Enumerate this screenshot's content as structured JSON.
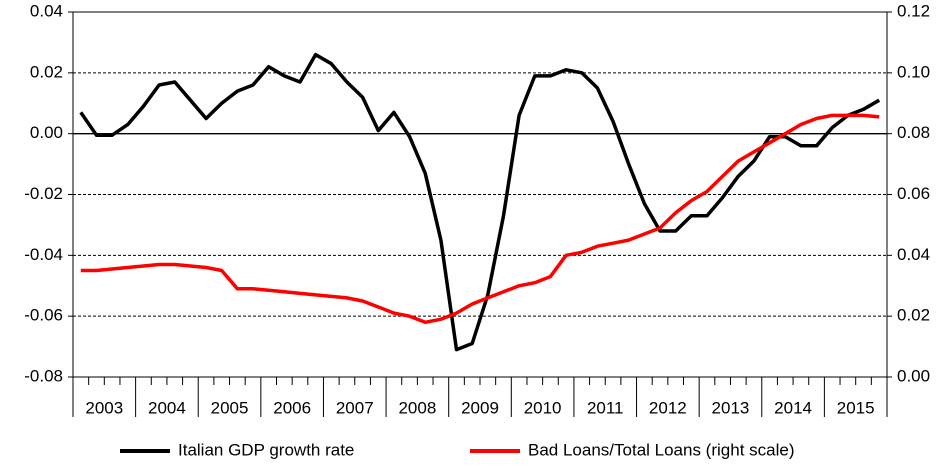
{
  "chart_data": {
    "type": "line",
    "categories": [
      "2003",
      null,
      null,
      null,
      "2004",
      null,
      null,
      null,
      "2005",
      null,
      null,
      null,
      "2006",
      null,
      null,
      null,
      "2007",
      null,
      null,
      null,
      "2008",
      null,
      null,
      null,
      "2009",
      null,
      null,
      null,
      "2010",
      null,
      null,
      null,
      "2011",
      null,
      null,
      null,
      "2012",
      null,
      null,
      null,
      "2013",
      null,
      null,
      null,
      "2014",
      null,
      null,
      null,
      "2015",
      null,
      null,
      null
    ],
    "series": [
      {
        "name": "Italian GDP growth rate",
        "color": "#000000",
        "axis": "y",
        "values": [
          0.007,
          -0.0005,
          -0.0005,
          0.003,
          0.009,
          0.016,
          0.017,
          0.011,
          0.005,
          0.01,
          0.014,
          0.016,
          0.022,
          0.019,
          0.017,
          0.026,
          0.023,
          0.017,
          0.012,
          0.001,
          0.007,
          -0.001,
          -0.013,
          -0.035,
          -0.071,
          -0.069,
          -0.053,
          -0.027,
          0.006,
          0.019,
          0.019,
          0.021,
          0.02,
          0.015,
          0.004,
          -0.01,
          -0.023,
          -0.032,
          -0.032,
          -0.027,
          -0.027,
          -0.021,
          -0.014,
          -0.009,
          -0.001,
          -0.001,
          -0.004,
          -0.004,
          0.002,
          0.006,
          0.008,
          0.011
        ]
      },
      {
        "name": "Bad Loans/Total Loans (right scale)",
        "color": "#ff0000",
        "axis": "y2",
        "values": [
          0.035,
          0.035,
          0.0355,
          0.036,
          0.0365,
          0.037,
          0.037,
          0.0365,
          0.036,
          0.035,
          0.029,
          0.029,
          0.0285,
          0.028,
          0.0275,
          0.027,
          0.0265,
          0.026,
          0.025,
          0.023,
          0.021,
          0.02,
          0.018,
          0.019,
          0.021,
          0.024,
          0.026,
          0.028,
          0.03,
          0.031,
          0.033,
          0.04,
          0.041,
          0.043,
          0.044,
          0.045,
          0.047,
          0.049,
          0.054,
          0.058,
          0.061,
          0.066,
          0.071,
          0.074,
          0.077,
          0.08,
          0.083,
          0.085,
          0.086,
          0.086,
          0.086,
          0.0855
        ]
      }
    ],
    "ylim": [
      -0.08,
      0.04
    ],
    "yticks": [
      -0.08,
      -0.06,
      -0.04,
      -0.02,
      {
        "value": 0,
        "label": "0.00"
      },
      0.02,
      0.04
    ],
    "y2lim": [
      0,
      0.12
    ],
    "y2ticks": [
      {
        "value": 0,
        "label": "0.00"
      },
      0.02,
      0.04,
      0.06,
      0.08,
      {
        "value": 0.1,
        "label": "0.10"
      },
      0.12
    ],
    "grid": true,
    "legend": "bottom"
  }
}
